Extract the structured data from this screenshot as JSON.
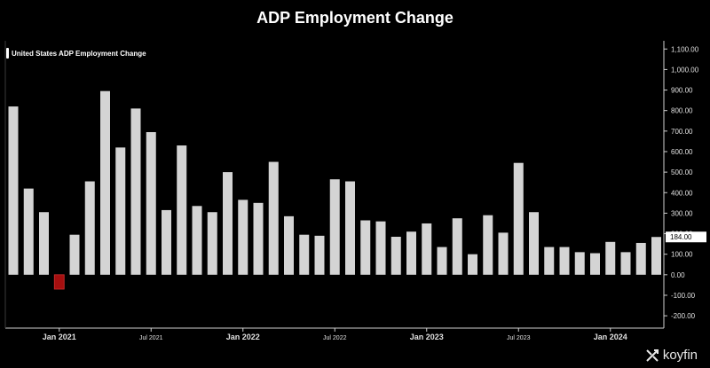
{
  "title": "ADP Employment Change",
  "watermark": "koyfin",
  "chart_data": {
    "type": "bar",
    "legend": "United States ADP Employment Change",
    "legend_position": "top-left",
    "x_ticks": [
      "Jan 2021",
      "Jul 2021",
      "Jan 2022",
      "Jul 2022",
      "Jan 2023",
      "Jul 2023",
      "Jan 2024"
    ],
    "y_ticks": [
      "1,100.00",
      "1,000.00",
      "900.00",
      "800.00",
      "700.00",
      "600.00",
      "500.00",
      "400.00",
      "300.00",
      "200.00",
      "100.00",
      "0.00",
      "-100.00",
      "-200.00"
    ],
    "ylim": [
      -260,
      1140
    ],
    "values": [
      820,
      420,
      305,
      -70,
      195,
      455,
      895,
      620,
      810,
      695,
      315,
      630,
      335,
      305,
      500,
      365,
      350,
      550,
      285,
      195,
      190,
      465,
      455,
      265,
      260,
      185,
      210,
      250,
      135,
      275,
      100,
      290,
      205,
      545,
      305,
      135,
      135,
      110,
      105,
      160,
      110,
      155,
      184
    ],
    "last_value_label": "184.00",
    "colors": {
      "positive": "#d4d4d4",
      "negative": "#a50f0f",
      "axis": "#cfcfcf",
      "background": "#000000"
    }
  }
}
